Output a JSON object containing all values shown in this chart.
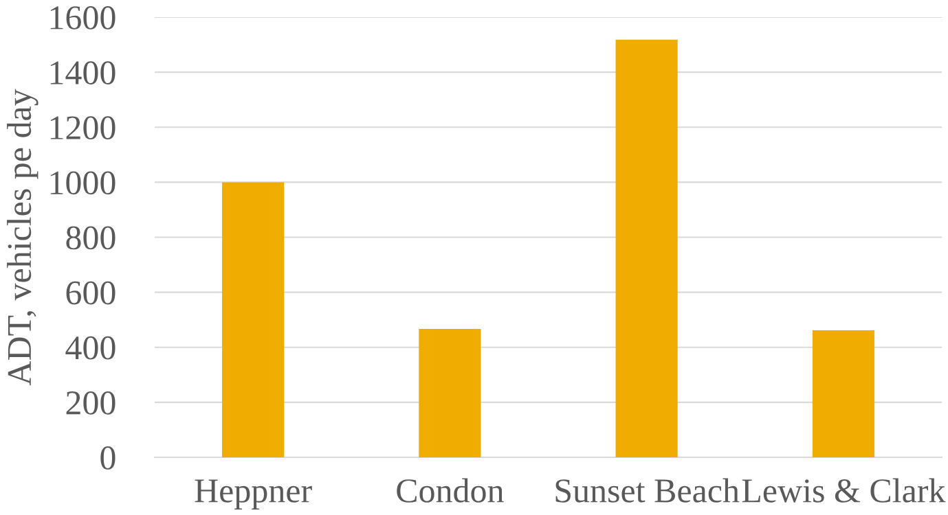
{
  "chart_data": {
    "type": "bar",
    "ylabel": "ADT, vehicles pe day",
    "categories": [
      "Heppner",
      "Condon",
      "Sunset Beach",
      "Lewis & Clark"
    ],
    "values": [
      1000,
      467,
      1518,
      462
    ],
    "color": "#f0ad00",
    "ylim": [
      0,
      1600
    ],
    "yticks": [
      0,
      200,
      400,
      600,
      800,
      1000,
      1200,
      1400,
      1600
    ],
    "grid": "y"
  }
}
